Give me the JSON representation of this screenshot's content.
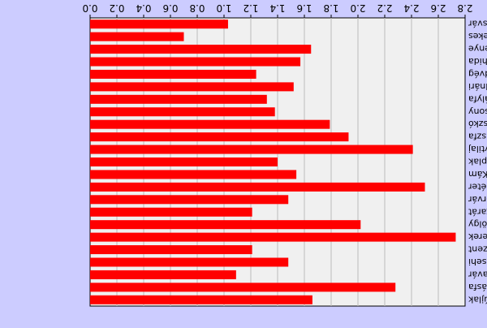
{
  "chart_data": {
    "type": "bar",
    "orientation": "horizontal",
    "mirrored": true,
    "categories": [
      "Vasvár",
      "Telekes",
      "Szemenye",
      "Sárhida",
      "Rábahídvég",
      "Püspökmolnári",
      "Petőmihályfa",
      "Pácsony",
      "Oszkó",
      "Olaszfa",
      "Nagytilaj",
      "Mikosszéplak",
      "Kám",
      "Hegyhátszentpéter",
      "Győrvár",
      "Gersekarát",
      "Egervölgy",
      "Csipkerek",
      "Csehimindszent",
      "Csehi",
      "Bérbaltavár",
      "Andrásfa",
      "Alsóújlak"
    ],
    "values": [
      1.03,
      0.7,
      1.65,
      1.57,
      1.24,
      1.52,
      1.32,
      1.38,
      1.79,
      1.93,
      2.41,
      1.4,
      1.54,
      2.5,
      1.48,
      1.21,
      2.02,
      2.73,
      1.21,
      1.48,
      1.09,
      2.28,
      1.66
    ],
    "xlim": [
      0,
      2.8
    ],
    "xticks": [
      "0.0",
      "0.2",
      "0.4",
      "0.6",
      "0.8",
      "1.0",
      "1.2",
      "1.4",
      "1.6",
      "1.8",
      "2.0",
      "2.2",
      "2.4",
      "2.6",
      "2.8"
    ],
    "grid": true,
    "colors": {
      "bar": "#ff0000",
      "plot_background": "#f0f0f0",
      "background": "#ccccff",
      "grid": "#bbbbbb"
    }
  }
}
